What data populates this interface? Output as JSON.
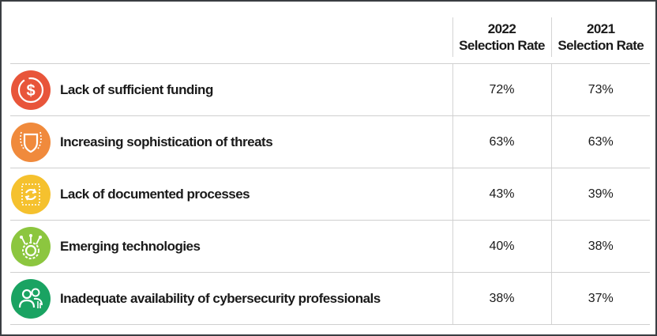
{
  "chart_data": {
    "type": "table",
    "columns": [
      "",
      "2022\nSelection Rate",
      "2021\nSelection Rate"
    ],
    "headers": [
      {
        "line1": "2022",
        "line2": "Selection Rate"
      },
      {
        "line1": "2021",
        "line2": "Selection Rate"
      }
    ],
    "rows": [
      {
        "label": "Lack of sufficient funding",
        "icon": "dollar-icon",
        "color": "#e8553a",
        "v2022": "72%",
        "v2021": "73%"
      },
      {
        "label": "Increasing sophistication of threats",
        "icon": "shield-icon",
        "color": "#f08a3c",
        "v2022": "63%",
        "v2021": "63%"
      },
      {
        "label": "Lack of documented processes",
        "icon": "document-cycle-icon",
        "color": "#f5c12e",
        "v2022": "43%",
        "v2021": "39%"
      },
      {
        "label": "Emerging technologies",
        "icon": "circuit-gear-icon",
        "color": "#8cc63f",
        "v2022": "40%",
        "v2021": "38%"
      },
      {
        "label": "Inadequate availability of cybersecurity professionals",
        "icon": "people-icon",
        "color": "#1aa362",
        "v2022": "38%",
        "v2021": "37%"
      }
    ]
  }
}
